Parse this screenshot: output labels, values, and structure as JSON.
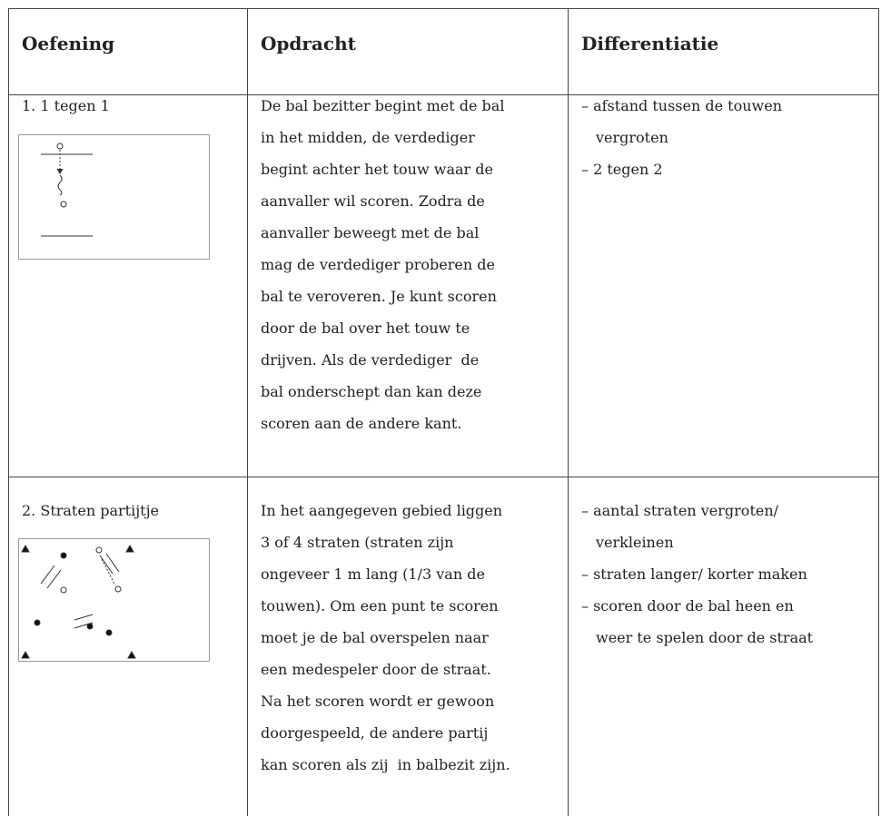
{
  "header": {
    "columns": [
      "Oefening",
      "Opdracht",
      "Differentiatie"
    ]
  },
  "rows": [
    {
      "exercise": "1. 1 tegen 1",
      "instruction": [
        "De bal bezitter begint met de bal",
        "in het midden, de verdediger",
        "begint achter het touw waar de",
        "aanvaller wil scoren. Zodra de",
        "aanvaller beweegt met de bal",
        "mag de verdediger proberen de",
        "bal te veroveren. Je kunt scoren",
        "door de bal over het touw te",
        "drijven. Als de verdediger  de",
        "bal onderschept dan kan deze",
        "scoren aan de andere kant."
      ],
      "differentiation": [
        [
          "– afstand tussen de touwen",
          "vergroten"
        ],
        [
          "– 2 tegen 2"
        ]
      ]
    },
    {
      "exercise": "2. Straten partijtje",
      "instruction": [
        "In het aangegeven gebied liggen",
        "3 of 4 straten (straten zijn",
        "ongeveer 1 m lang (1/3 van de",
        "touwen). Om een punt te scoren",
        "moet je de bal overspelen naar",
        "een medespeler door de straat.",
        "Na het scoren wordt er gewoon",
        "doorgespeeld, de andere partij",
        "kan scoren als zij  in balbezit zijn."
      ],
      "differentiation": [
        [
          "– aantal straten vergroten/",
          "verkleinen"
        ],
        [
          "– straten langer/ korter maken"
        ],
        [
          "– scoren door de bal heen en",
          "weer te spelen door de straat"
        ]
      ]
    }
  ]
}
